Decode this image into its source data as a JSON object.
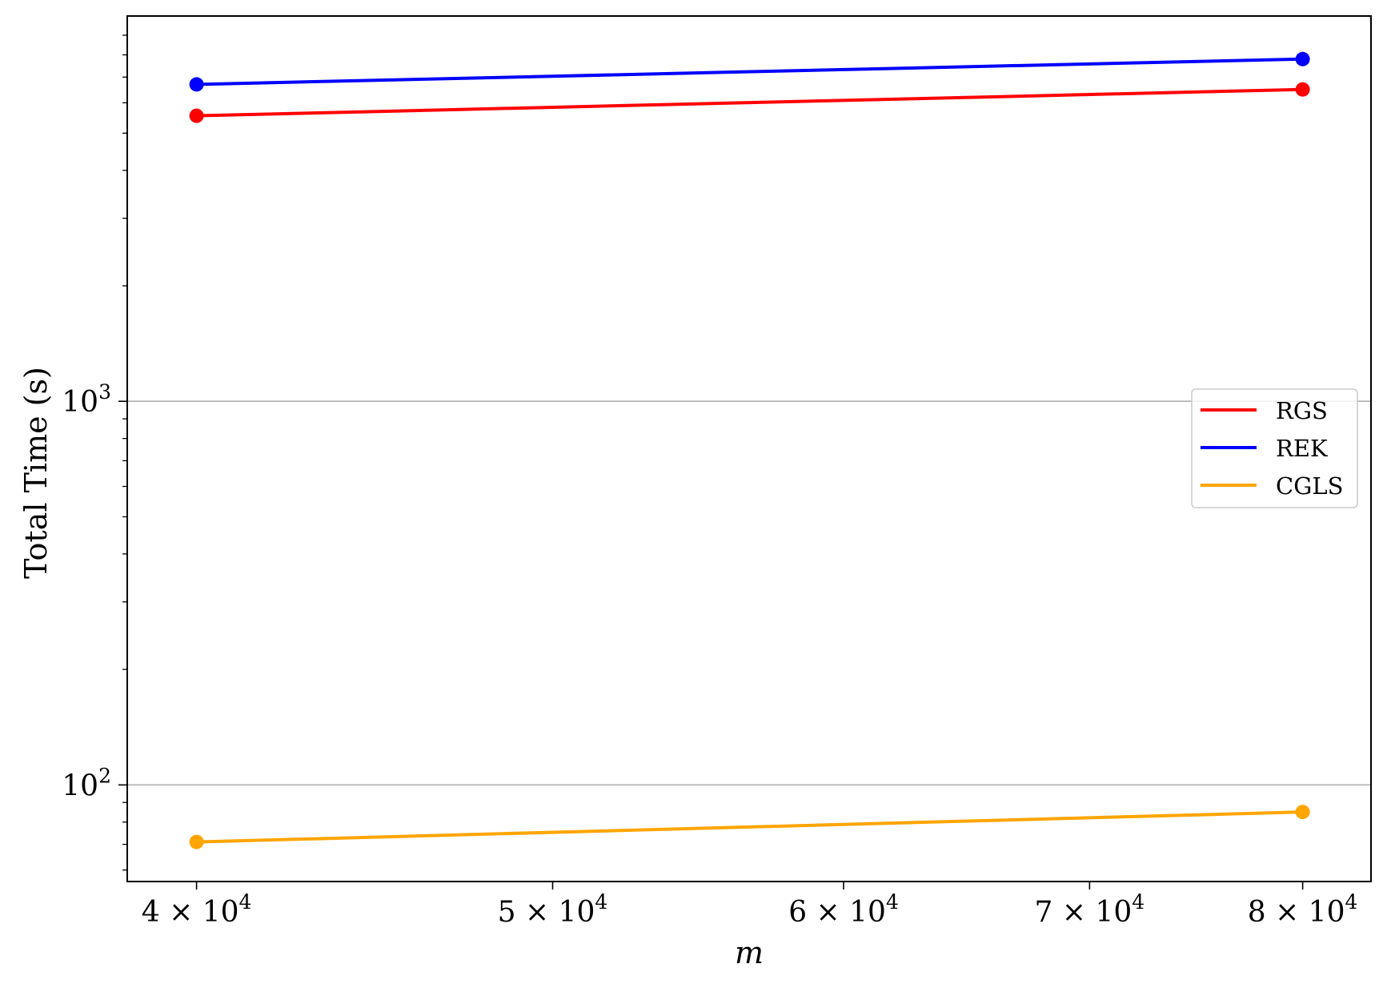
{
  "chart_data": {
    "type": "line",
    "xscale": "log",
    "yscale": "log",
    "xlabel": "m",
    "ylabel": "Total Time (s)",
    "xlim": [
      38300,
      83500
    ],
    "ylim": [
      56,
      10100
    ],
    "x_ticks": [
      {
        "value": 40000,
        "mantissa": "4",
        "exponent": "4"
      },
      {
        "value": 50000,
        "mantissa": "5",
        "exponent": "4"
      },
      {
        "value": 60000,
        "mantissa": "6",
        "exponent": "4"
      },
      {
        "value": 70000,
        "mantissa": "7",
        "exponent": "4"
      },
      {
        "value": 80000,
        "mantissa": "8",
        "exponent": "4"
      }
    ],
    "y_major_ticks": [
      {
        "value": 100,
        "base": "10",
        "exponent": "2"
      },
      {
        "value": 1000,
        "base": "10",
        "exponent": "3"
      }
    ],
    "y_minor_ticks": [
      60,
      70,
      80,
      90,
      200,
      300,
      400,
      500,
      600,
      700,
      800,
      900,
      2000,
      3000,
      4000,
      5000,
      6000,
      7000,
      8000,
      9000
    ],
    "grid": "y-major",
    "legend_position": "center-right",
    "x": [
      40000,
      80000
    ],
    "series": [
      {
        "name": "RGS",
        "color": "#ff0000",
        "values": [
          5550,
          6500
        ]
      },
      {
        "name": "REK",
        "color": "#0000ff",
        "values": [
          6700,
          7800
        ]
      },
      {
        "name": "CGLS",
        "color": "#ffa500",
        "values": [
          71,
          85
        ]
      }
    ]
  }
}
